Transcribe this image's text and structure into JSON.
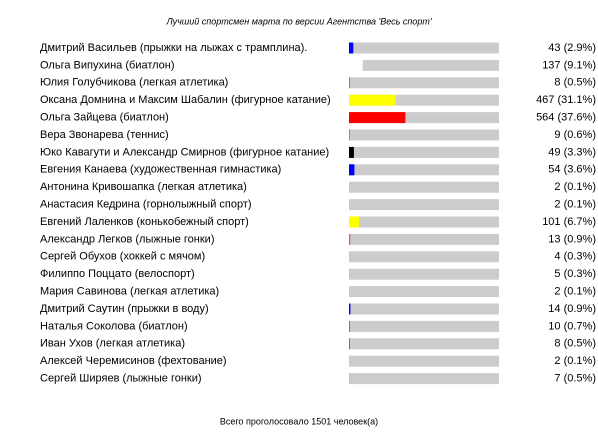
{
  "chart_data": {
    "type": "bar",
    "title": "Лучший спортсмен марта по версии Агентства 'Весь спорт'",
    "categories": [
      "Дмитрий Васильев (прыжки на лыжах с трамплина).",
      "Ольга Випухина (биатлон)",
      "Юлия Голубчикова (легкая атлетика)",
      "Оксана Домнина и Максим Шабалин (фигурное катание)",
      "Ольга Зайцева (биатлон)",
      "Вера Звонарева (теннис)",
      "Юко Кавагути и Александр Смирнов (фигурное катание)",
      "Евгения Канаева (художественная гимнастика)",
      "Антонина Кривошапка (легкая атлетика)",
      "Анастасия Кедрина (горнолыжный спорт)",
      "Евгений Лаленков (конькобежный спорт)",
      "Александр Легков (лыжные гонки)",
      "Сергей Обухов (хоккей с мячом)",
      "Филиппо Поццато (велоспорт)",
      "Мария Савинова (легкая атлетика)",
      "Дмитрий Саутин (прыжки в воду)",
      "Наталья Соколова (биатлон)",
      "Иван Ухов (легкая атлетика)",
      "Алексей Черемисинов (фехтование)",
      "Сергей Ширяев (лыжные гонки)"
    ],
    "values": [
      43,
      137,
      8,
      467,
      564,
      9,
      49,
      54,
      2,
      2,
      101,
      13,
      4,
      5,
      2,
      14,
      10,
      8,
      2,
      7
    ],
    "value_labels": [
      "43 (2.9%)",
      "137 (9.1%)",
      "8 (0.5%)",
      "467 (31.1%)",
      "564 (37.6%)",
      "9 (0.6%)",
      "49 (3.3%)",
      "54 (3.6%)",
      "2 (0.1%)",
      "2 (0.1%)",
      "101 (6.7%)",
      "13 (0.9%)",
      "4 (0.3%)",
      "5 (0.3%)",
      "2 (0.1%)",
      "14 (0.9%)",
      "10 (0.7%)",
      "8 (0.5%)",
      "2 (0.1%)",
      "7 (0.5%)"
    ],
    "colors": [
      "#0000ff",
      "#ffffff",
      "#33aa33",
      "#ffff00",
      "#ff0000",
      "#cc6666",
      "#000000",
      "#0000ff",
      "#c0c0c0",
      "#c0c0c0",
      "#ffff00",
      "#cc6666",
      "#c0c0c0",
      "#c0c0c0",
      "#c0c0c0",
      "#0000ff",
      "#33aa33",
      "#cc3333",
      "#c0c0c0",
      "#c0c0c0"
    ],
    "track_color": "#cccccc",
    "xlim": [
      0,
      1501
    ],
    "footer": "Всего проголосовало 1501 человек(а)"
  }
}
